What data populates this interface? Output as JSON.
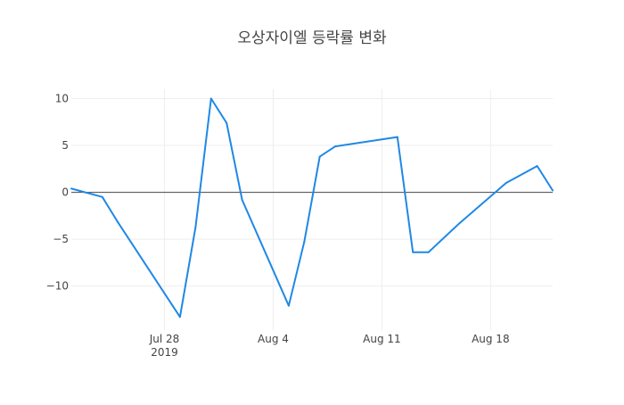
{
  "chart_data": {
    "type": "line",
    "title": "오상자이엘 등락률 변화",
    "xlabel": "",
    "ylabel": "",
    "x_axis": {
      "type": "date",
      "range": [
        "2019-07-22",
        "2019-08-22"
      ],
      "ticks": [
        {
          "date": "2019-07-28",
          "label": "Jul 28",
          "sublabel": "2019"
        },
        {
          "date": "2019-08-04",
          "label": "Aug 4",
          "sublabel": ""
        },
        {
          "date": "2019-08-11",
          "label": "Aug 11",
          "sublabel": ""
        },
        {
          "date": "2019-08-18",
          "label": "Aug 18",
          "sublabel": ""
        }
      ]
    },
    "y_axis": {
      "range": [
        -14.7,
        11.0
      ],
      "ticks": [
        {
          "value": 10,
          "label": "10"
        },
        {
          "value": 5,
          "label": "5"
        },
        {
          "value": 0,
          "label": "0"
        },
        {
          "value": -5,
          "label": "−5"
        },
        {
          "value": -10,
          "label": "−10"
        }
      ],
      "zeroline": true
    },
    "grid": true,
    "legend": "none",
    "series": [
      {
        "color": "#1f88e5",
        "points": [
          {
            "x": "2019-07-22",
            "y": 0.4
          },
          {
            "x": "2019-07-24",
            "y": -0.5
          },
          {
            "x": "2019-07-25",
            "y": -3.2
          },
          {
            "x": "2019-07-29",
            "y": -13.3
          },
          {
            "x": "2019-07-30",
            "y": -3.7
          },
          {
            "x": "2019-07-31",
            "y": 10.0
          },
          {
            "x": "2019-08-01",
            "y": 7.4
          },
          {
            "x": "2019-08-02",
            "y": -0.8
          },
          {
            "x": "2019-08-05",
            "y": -12.1
          },
          {
            "x": "2019-08-06",
            "y": -5.3
          },
          {
            "x": "2019-08-07",
            "y": 3.8
          },
          {
            "x": "2019-08-08",
            "y": 4.9
          },
          {
            "x": "2019-08-12",
            "y": 5.9
          },
          {
            "x": "2019-08-13",
            "y": -6.4
          },
          {
            "x": "2019-08-14",
            "y": -6.4
          },
          {
            "x": "2019-08-16",
            "y": -3.3
          },
          {
            "x": "2019-08-19",
            "y": 1.0
          },
          {
            "x": "2019-08-21",
            "y": 2.8
          },
          {
            "x": "2019-08-22",
            "y": 0.2
          }
        ]
      }
    ]
  }
}
